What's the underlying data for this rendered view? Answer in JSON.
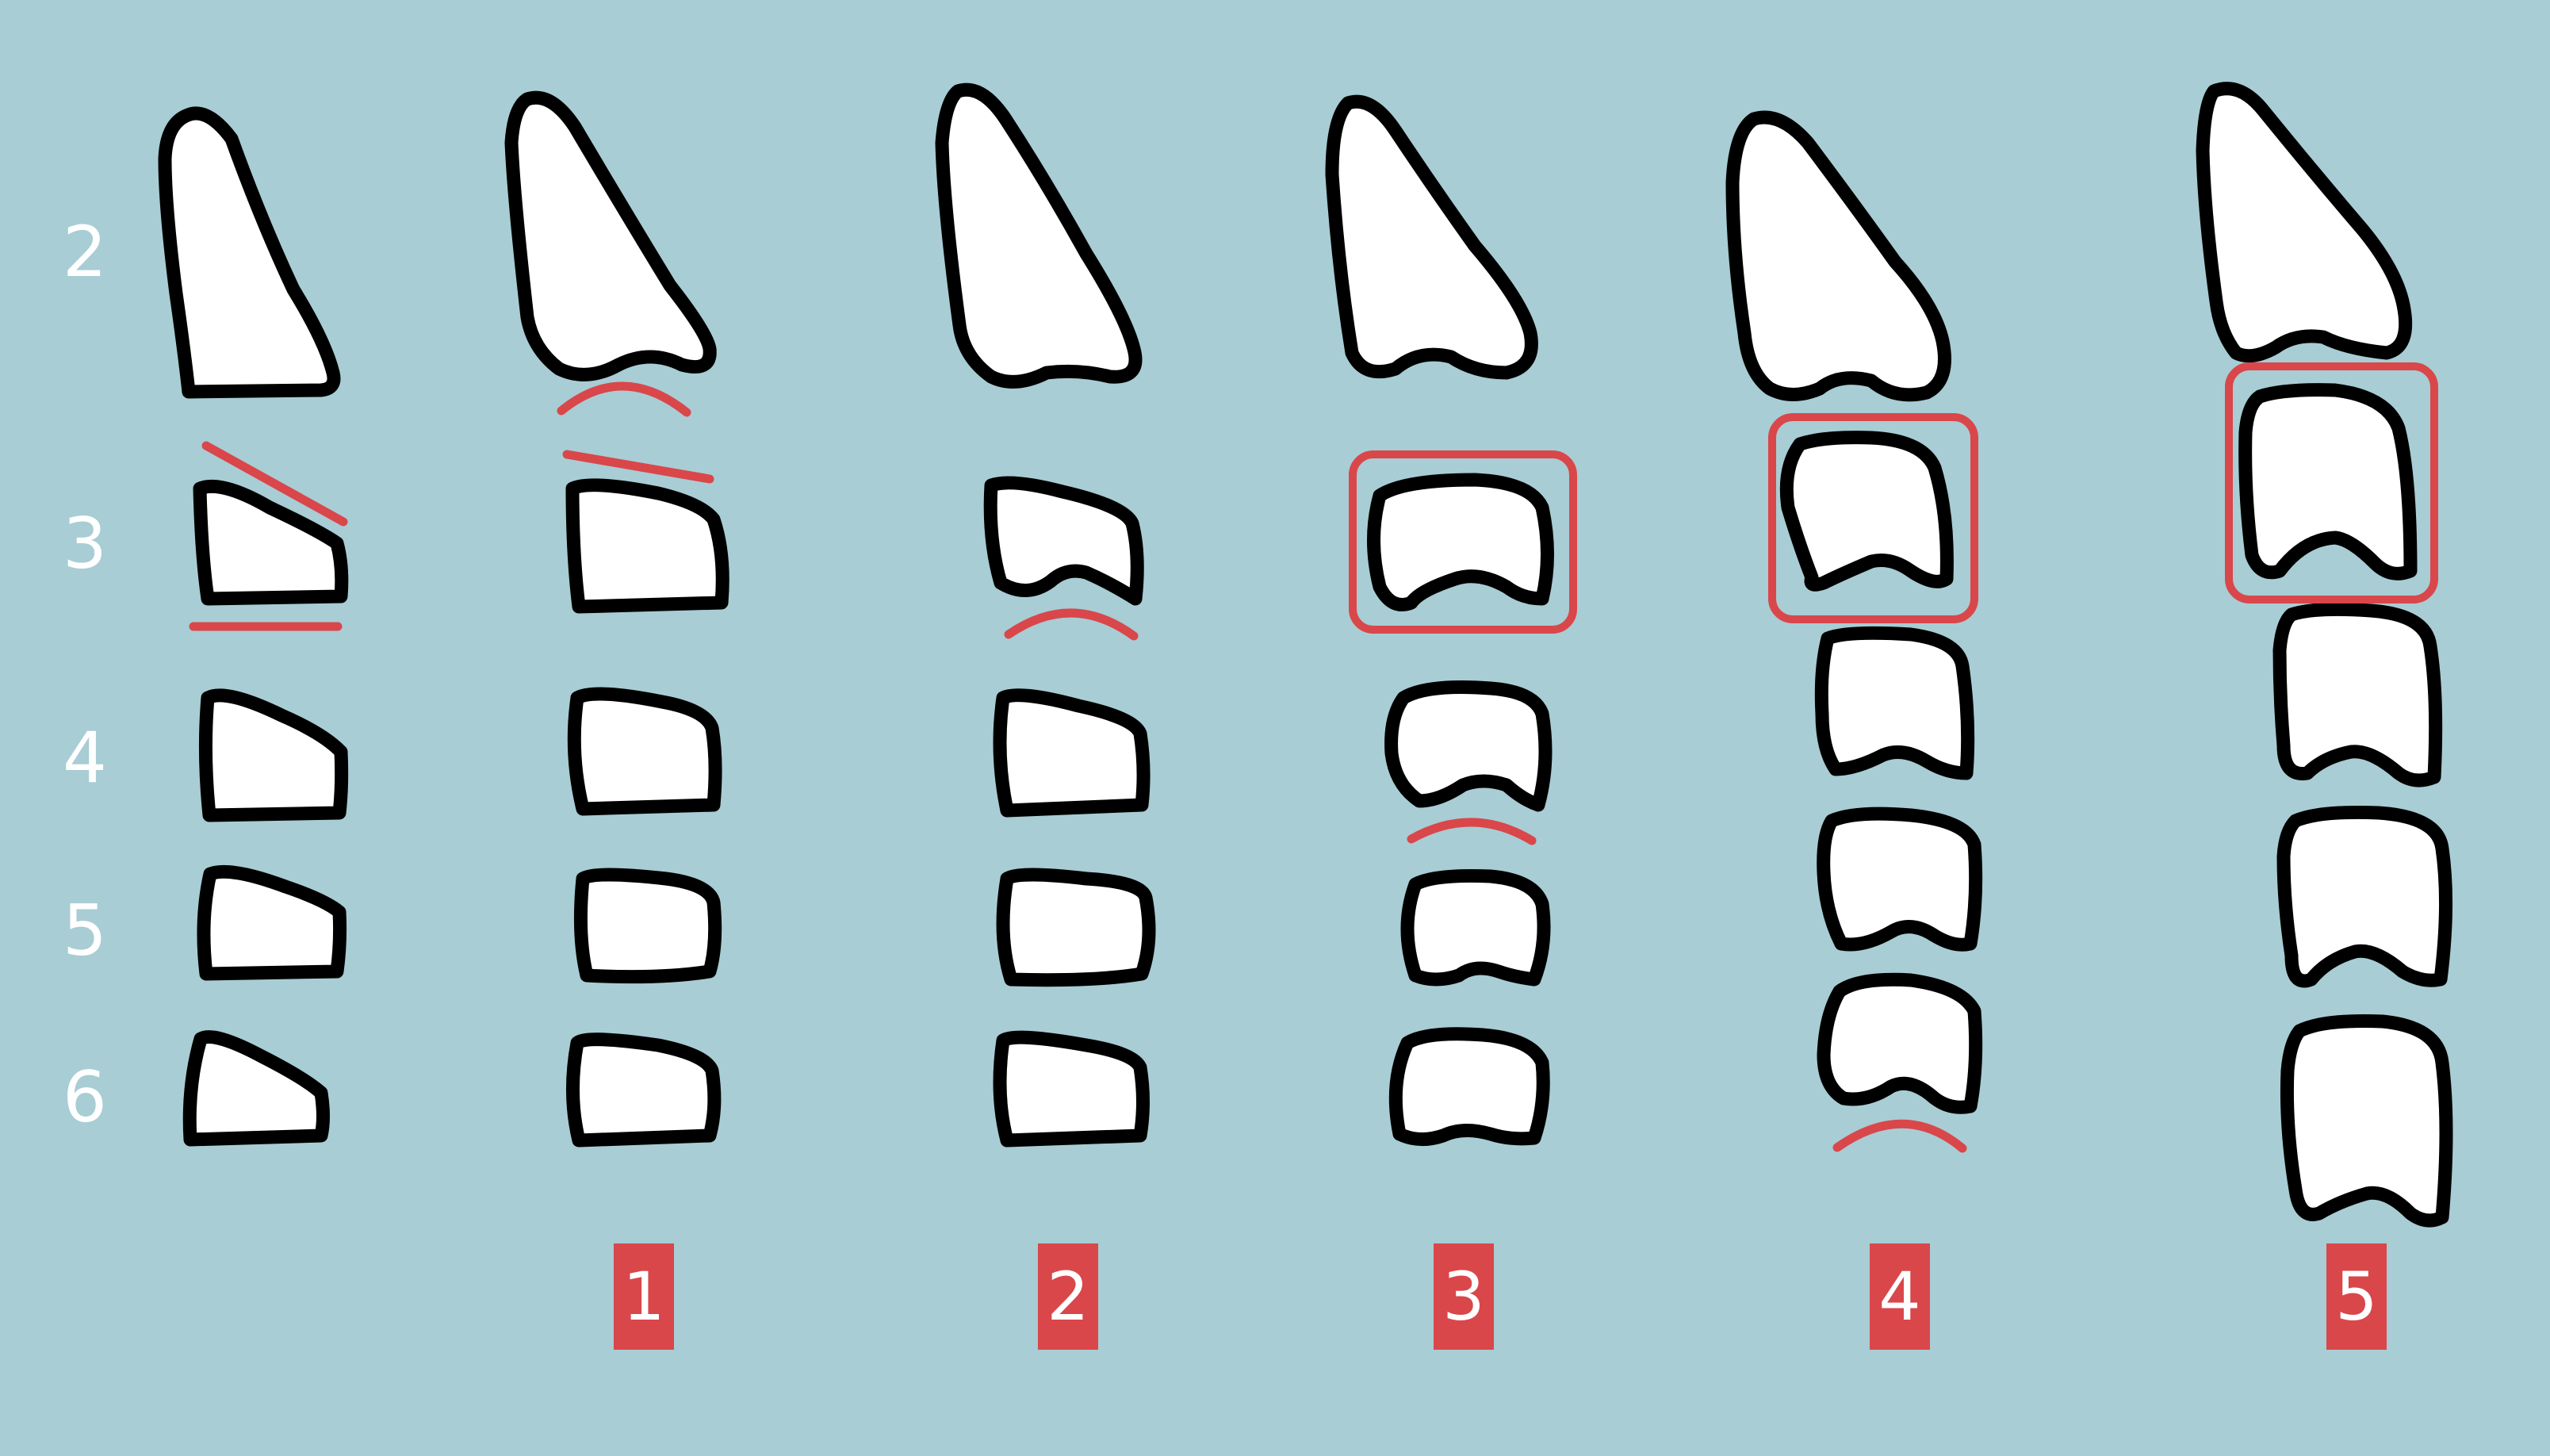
{
  "row_labels": [
    "2",
    "3",
    "4",
    "5",
    "6"
  ],
  "step_badges": [
    "1",
    "2",
    "3",
    "4",
    "5"
  ],
  "colors": {
    "background": "#a8cdd4",
    "tooth_fill": "#ffffff",
    "tooth_outline": "#000000",
    "highlight": "#d9474b",
    "label_text": "#ffffff"
  }
}
